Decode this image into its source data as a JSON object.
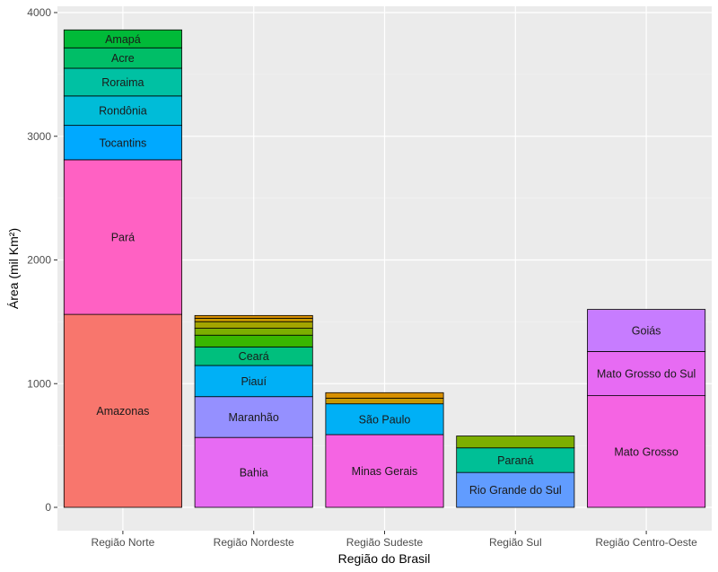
{
  "chart_data": {
    "type": "bar",
    "stacked": true,
    "xlabel": "Região do Brasil",
    "ylabel": "Área (mil Km²)",
    "ylim": [
      0,
      4050
    ],
    "yticks": [
      0,
      1000,
      2000,
      3000,
      4000
    ],
    "grid": true,
    "categories": [
      "Região Norte",
      "Região Nordeste",
      "Região Sudeste",
      "Região Sul",
      "Região Centro-Oeste"
    ],
    "bars": [
      {
        "category": "Região Norte",
        "segments": [
          {
            "label": "Amazonas",
            "value": 1560,
            "color": "#F8766D"
          },
          {
            "label": "Pará",
            "value": 1250,
            "color": "#FF61C3"
          },
          {
            "label": "Tocantins",
            "value": 278,
            "color": "#00A9FF"
          },
          {
            "label": "Rondônia",
            "value": 238,
            "color": "#00BCD8"
          },
          {
            "label": "Roraima",
            "value": 224,
            "color": "#00C1A3"
          },
          {
            "label": "Acre",
            "value": 165,
            "color": "#00BE67"
          },
          {
            "label": "Amapá",
            "value": 145,
            "color": "#00BA38"
          }
        ]
      },
      {
        "category": "Região Nordeste",
        "segments": [
          {
            "label": "Bahia",
            "value": 565,
            "color": "#E76BF3"
          },
          {
            "label": "Maranhão",
            "value": 330,
            "color": "#9590FF"
          },
          {
            "label": "Piauí",
            "value": 252,
            "color": "#00B0F6"
          },
          {
            "label": "Ceará",
            "value": 150,
            "color": "#00BF7D"
          },
          {
            "label": "",
            "value": 95,
            "color": "#39B600"
          },
          {
            "label": "",
            "value": 56,
            "color": "#7CAE00"
          },
          {
            "label": "",
            "value": 53,
            "color": "#A3A500"
          },
          {
            "label": "",
            "value": 28,
            "color": "#C99800"
          },
          {
            "label": "",
            "value": 22,
            "color": "#D89000"
          }
        ]
      },
      {
        "category": "Região Sudeste",
        "segments": [
          {
            "label": "Minas Gerais",
            "value": 588,
            "color": "#F564E3"
          },
          {
            "label": "São Paulo",
            "value": 249,
            "color": "#00B0F6"
          },
          {
            "label": "",
            "value": 46,
            "color": "#C99800"
          },
          {
            "label": "",
            "value": 44,
            "color": "#D89000"
          }
        ]
      },
      {
        "category": "Região Sul",
        "segments": [
          {
            "label": "Rio Grande do Sul",
            "value": 282,
            "color": "#619CFF"
          },
          {
            "label": "Paraná",
            "value": 199,
            "color": "#00BF96"
          },
          {
            "label": "",
            "value": 96,
            "color": "#7CAE00"
          }
        ]
      },
      {
        "category": "Região Centro-Oeste",
        "segments": [
          {
            "label": "Mato Grosso",
            "value": 903,
            "color": "#F564E3"
          },
          {
            "label": "Mato Grosso do Sul",
            "value": 357,
            "color": "#E76BF3"
          },
          {
            "label": "Goiás",
            "value": 340,
            "color": "#C77CFF"
          }
        ]
      }
    ]
  }
}
